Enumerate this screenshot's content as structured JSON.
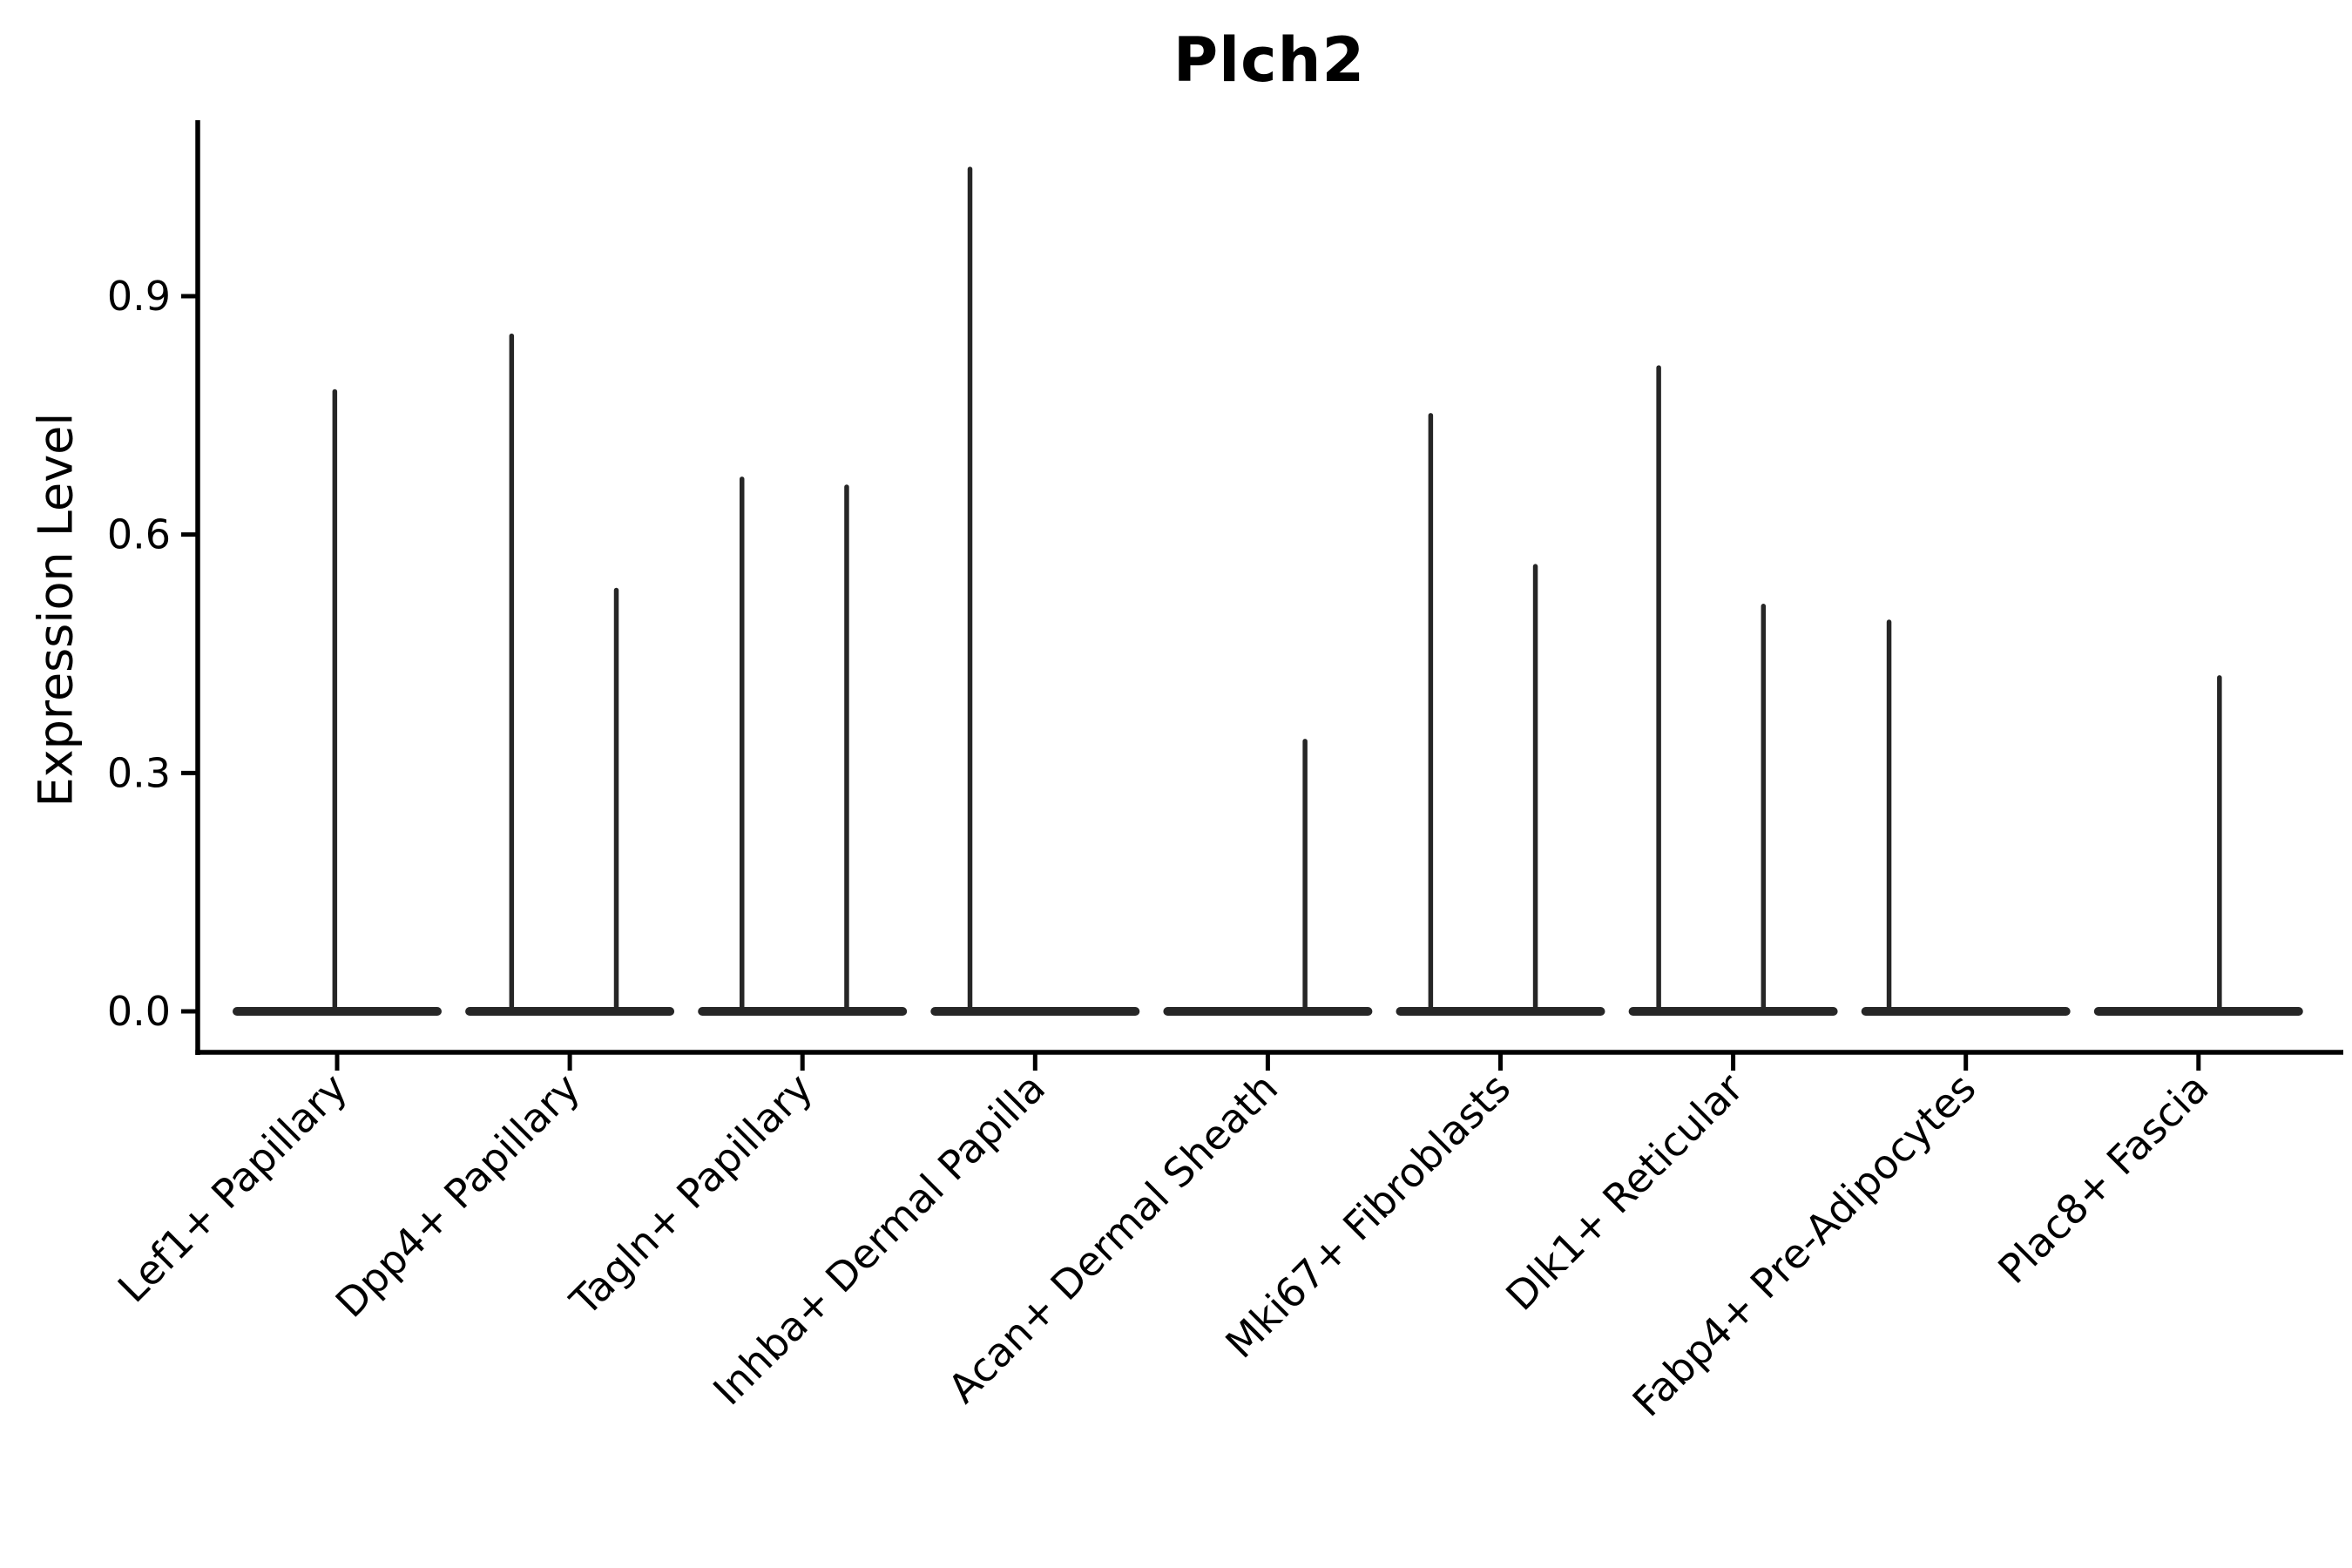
{
  "title": "Plch2",
  "chart_data": {
    "type": "violin",
    "title": "Plch2",
    "ylabel": "Expression Level",
    "xlabel": "",
    "yticks": [
      "0.0",
      "0.3",
      "0.6",
      "0.9"
    ],
    "ytick_values": [
      0.0,
      0.3,
      0.6,
      0.9
    ],
    "ylim": [
      -0.05,
      1.12
    ],
    "grid": false,
    "legend": "none",
    "background": "#ffffff",
    "ink_color": "#000000",
    "violin_color": "#262626",
    "categories": [
      "Lef1+ Papillary",
      "Dpp4+ Papillary",
      "Tagln+ Papillary",
      "Inhba+ Dermal Papilla",
      "Acan+ Dermal Sheath",
      "Mki67+ Fibroblasts",
      "Dlk1+ Reticular",
      "Fabp4+ Pre-Adipocytes",
      "Plac8+ Fascia"
    ],
    "violins": [
      {
        "category": "Lef1+ Papillary",
        "baseline_value": 0.0,
        "spikes": [
          {
            "offset": -0.01,
            "max": 0.78
          }
        ]
      },
      {
        "category": "Dpp4+ Papillary",
        "baseline_value": 0.0,
        "spikes": [
          {
            "offset": -0.25,
            "max": 0.85
          },
          {
            "offset": 0.2,
            "max": 0.53
          }
        ]
      },
      {
        "category": "Tagln+ Papillary",
        "baseline_value": 0.0,
        "spikes": [
          {
            "offset": -0.26,
            "max": 0.67
          },
          {
            "offset": 0.19,
            "max": 0.66
          }
        ]
      },
      {
        "category": "Inhba+ Dermal Papilla",
        "baseline_value": 0.0,
        "spikes": [
          {
            "offset": -0.28,
            "max": 1.06
          }
        ]
      },
      {
        "category": "Acan+ Dermal Sheath",
        "baseline_value": 0.0,
        "spikes": [
          {
            "offset": 0.16,
            "max": 0.34
          }
        ]
      },
      {
        "category": "Mki67+ Fibroblasts",
        "baseline_value": 0.0,
        "spikes": [
          {
            "offset": -0.3,
            "max": 0.75
          },
          {
            "offset": 0.15,
            "max": 0.56
          }
        ]
      },
      {
        "category": "Dlk1+ Reticular",
        "baseline_value": 0.0,
        "spikes": [
          {
            "offset": -0.32,
            "max": 0.81
          },
          {
            "offset": 0.13,
            "max": 0.51
          }
        ]
      },
      {
        "category": "Fabp4+ Pre-Adipocytes",
        "baseline_value": 0.0,
        "spikes": [
          {
            "offset": -0.33,
            "max": 0.49
          }
        ]
      },
      {
        "category": "Plac8+ Fascia",
        "baseline_value": 0.0,
        "spikes": [
          {
            "offset": 0.09,
            "max": 0.42
          }
        ]
      }
    ]
  }
}
